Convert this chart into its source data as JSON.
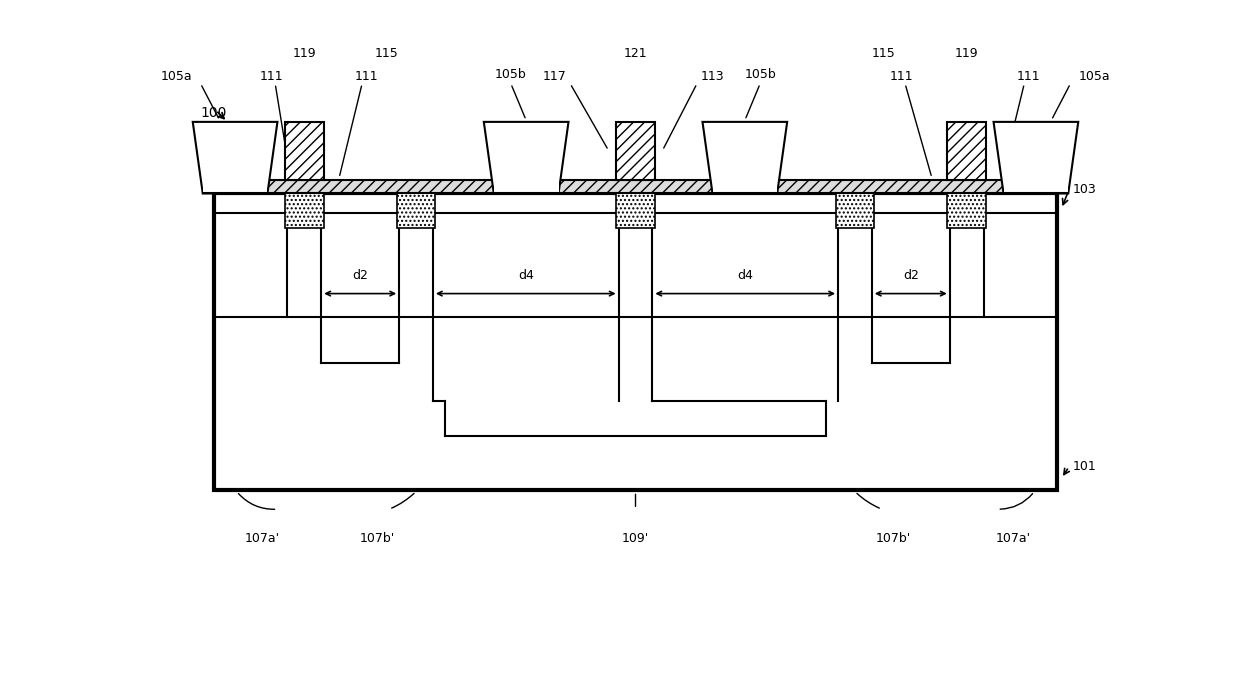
{
  "fig_width": 12.4,
  "fig_height": 6.82,
  "bg_color": "#ffffff",
  "line_color": "#000000",
  "lw": 1.5,
  "label_100": "100",
  "label_101": "101",
  "label_103": "103",
  "label_105a": "105a",
  "label_105b": "105b",
  "label_107a": "107a'",
  "label_107b": "107b'",
  "label_109": "109'",
  "label_111": "111",
  "label_113": "113",
  "label_115": "115",
  "label_117": "117",
  "label_119": "119",
  "label_121": "121",
  "label_d2": "d2",
  "label_d4": "d4",
  "fs": 9
}
